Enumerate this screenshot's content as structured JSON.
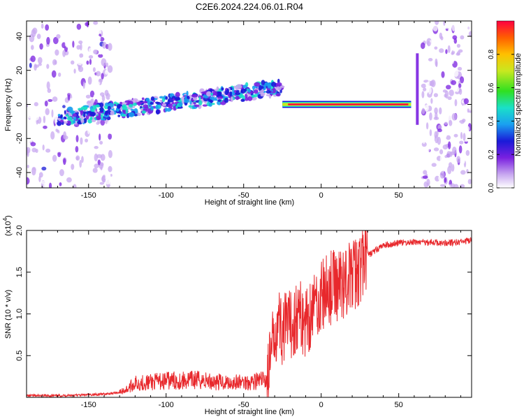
{
  "title": "C2E6.2024.224.06.01.R04",
  "chart_data": [
    {
      "type": "heatmap",
      "xlabel": "Height of straight line (km)",
      "ylabel": "Frequency (Hz)",
      "xlim": [
        -190,
        97
      ],
      "ylim": [
        -49,
        49
      ],
      "xticks": [
        -150,
        -100,
        -50,
        0,
        50
      ],
      "yticks": [
        -40,
        -20,
        0,
        20,
        40
      ],
      "colorbar": {
        "label": "Normalized spectral amplitude",
        "range": [
          0,
          1
        ],
        "ticks": [
          0.0,
          0.2,
          0.4,
          0.6,
          0.8
        ],
        "tick_labels": [
          "0.0",
          "0.2",
          "0.4",
          "0.6",
          "0.8"
        ]
      },
      "features": [
        {
          "name": "drifting band",
          "x_range": [
            -170,
            -25
          ],
          "freq_start": -8,
          "freq_end": 10
        },
        {
          "name": "steady tone",
          "x_range": [
            -25,
            58
          ],
          "freq": 0
        }
      ]
    },
    {
      "type": "line",
      "xlabel": "Height of straight line (km)",
      "ylabel": "SNR (10 * v/v)",
      "scale_label": "(x10",
      "scale_exp": "4",
      "xlim": [
        -190,
        97
      ],
      "ylim": [
        0,
        2.0
      ],
      "xticks": [
        -150,
        -100,
        -50,
        0,
        50
      ],
      "yticks": [
        0.5,
        1.0,
        1.5,
        2.0
      ],
      "ytick_labels": [
        "0.5",
        "1.0",
        "1.5",
        "2.0"
      ],
      "series": [
        {
          "color": "#e8282c",
          "x": [
            -190,
            -170,
            -150,
            -140,
            -130,
            -125,
            -120,
            -110,
            -100,
            -90,
            -80,
            -70,
            -60,
            -50,
            -40,
            -35,
            -32,
            -30,
            -28,
            -25,
            -20,
            -15,
            -10,
            -5,
            0,
            5,
            10,
            15,
            20,
            25,
            30,
            40,
            50,
            60,
            70,
            80,
            90,
            97
          ],
          "y": [
            0.02,
            0.02,
            0.03,
            0.04,
            0.06,
            0.1,
            0.17,
            0.18,
            0.2,
            0.2,
            0.21,
            0.19,
            0.18,
            0.18,
            0.2,
            0.22,
            0.5,
            0.8,
            0.95,
            0.8,
            0.85,
            1.0,
            0.9,
            1.1,
            1.2,
            1.3,
            1.35,
            1.4,
            1.45,
            1.55,
            1.7,
            1.82,
            1.85,
            1.86,
            1.86,
            1.85,
            1.86,
            1.88
          ]
        }
      ]
    }
  ]
}
